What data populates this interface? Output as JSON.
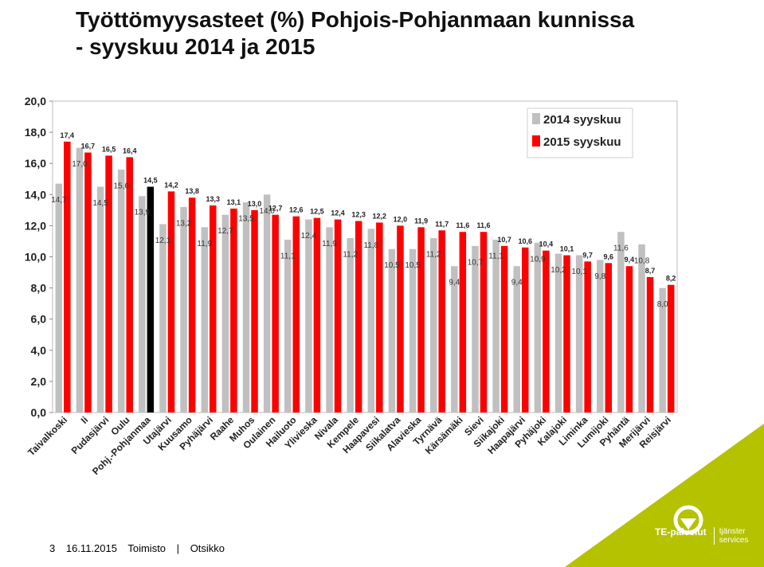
{
  "title": {
    "line1": "Työttömyysasteet (%) Pohjois-Pohjanmaan kunnissa",
    "line2": "- syyskuu 2014 ja 2015"
  },
  "footer": {
    "page": "3",
    "date": "16.11.2015",
    "office": "Toimisto",
    "sep": "|",
    "subject": "Otsikko"
  },
  "brand": {
    "name": "TE-palvelut",
    "sub1": "tjänster",
    "sub2": "services",
    "color": "#b5c200"
  },
  "colors": {
    "series2014": "#c0c0c0",
    "series2015": "#ff0000",
    "highlight2015": "#000000"
  },
  "chart_data": {
    "type": "bar",
    "title": "",
    "xlabel": "",
    "ylabel": "",
    "ylim": [
      0,
      20
    ],
    "yticks": [
      "0,0",
      "2,0",
      "4,0",
      "6,0",
      "8,0",
      "10,0",
      "12,0",
      "14,0",
      "16,0",
      "18,0",
      "20,0"
    ],
    "grid": false,
    "legend_position": "top-right",
    "highlight_category": "Pohj.-Pohjanmaa",
    "categories": [
      "Taivalkoski",
      "Ii",
      "Pudasjärvi",
      "Oulu",
      "Pohj.-Pohjanmaa",
      "Utajärvi",
      "Kuusamo",
      "Pyhäjärvi",
      "Raahe",
      "Muhos",
      "Oulainen",
      "Hailuoto",
      "Ylivieska",
      "Nivala",
      "Kempele",
      "Haapavesi",
      "Siikalatva",
      "Alavieska",
      "Tyrnävä",
      "Kärsämäki",
      "Sievi",
      "Siikajoki",
      "Haapajärvi",
      "Pyhäjoki",
      "Kalajoki",
      "Liminka",
      "Lumijoki",
      "Pyhäntä",
      "Merijärvi",
      "Reisjärvi"
    ],
    "series": [
      {
        "name": "2014 syyskuu",
        "values": [
          14.7,
          17.0,
          14.5,
          15.6,
          13.9,
          12.1,
          13.2,
          11.9,
          12.7,
          13.5,
          14.0,
          11.1,
          12.4,
          11.9,
          11.2,
          11.8,
          10.5,
          10.5,
          11.2,
          9.4,
          10.7,
          11.1,
          9.4,
          10.9,
          10.2,
          10.1,
          9.8,
          11.6,
          10.8,
          8.0
        ],
        "labels": [
          "14,7",
          "17,0",
          "14,5",
          "15,6",
          "13,9",
          "12,1",
          "13,2",
          "11,9",
          "12,7",
          "13,5",
          "14,0",
          "11,1",
          "12,4",
          "11,9",
          "11,2",
          "11,8",
          "10,5",
          "10,5",
          "11,2",
          "9,4",
          "10,7",
          "11,1",
          "9,4",
          "10,9",
          "10,2",
          "10,1",
          "9,8",
          "11,6",
          "10,8",
          "8,0"
        ]
      },
      {
        "name": "2015 syyskuu",
        "values": [
          17.4,
          16.7,
          16.5,
          16.4,
          14.5,
          14.2,
          13.8,
          13.3,
          13.1,
          13.0,
          12.7,
          12.6,
          12.5,
          12.4,
          12.3,
          12.2,
          12.0,
          11.9,
          11.7,
          11.6,
          11.6,
          10.7,
          10.6,
          10.4,
          10.1,
          9.7,
          9.6,
          9.4,
          8.7,
          8.2
        ],
        "labels": [
          "17,4",
          "16,7",
          "16,5",
          "16,4",
          "14,5",
          "14,2",
          "13,8",
          "13,3",
          "13,1",
          "13,0",
          "12,7",
          "12,6",
          "12,5",
          "12,4",
          "12,3",
          "12,2",
          "12,0",
          "11,9",
          "11,7",
          "11,6",
          "11,6",
          "10,7",
          "10,6",
          "10,4",
          "10,1",
          "9,7",
          "9,6",
          "9,4",
          "8,7",
          "8,2"
        ]
      }
    ]
  }
}
